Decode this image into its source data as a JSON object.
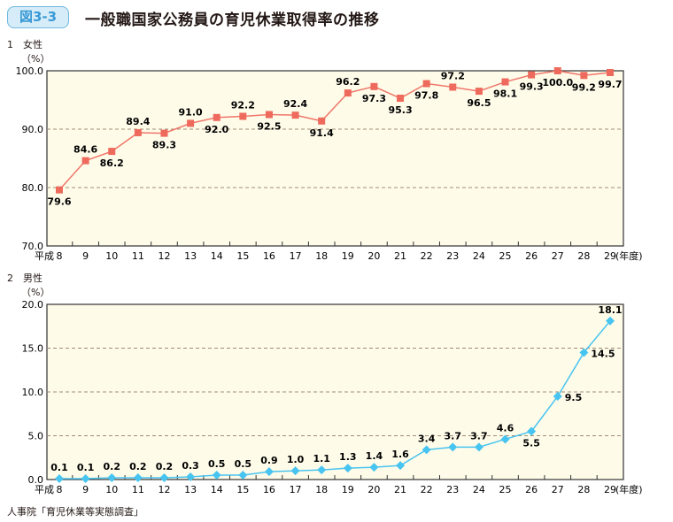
{
  "header": {
    "badge": "図3-3",
    "title": "一般職国家公務員の育児休業取得率の推移"
  },
  "source": "人事院「育児休業等実態調査」",
  "colors": {
    "plot_bg": "#fefbe9",
    "female": "#f0776a",
    "female_marker": "#ee6a5c",
    "male": "#48c4f0",
    "grid": "#a08c74"
  },
  "chart_data": [
    {
      "type": "line",
      "section_label": "1　女性",
      "ylabel": "（%）",
      "xlabel": "(年度)",
      "x_prefix": "平成",
      "categories": [
        "8",
        "9",
        "10",
        "11",
        "12",
        "13",
        "14",
        "15",
        "16",
        "17",
        "18",
        "19",
        "20",
        "21",
        "22",
        "23",
        "24",
        "25",
        "26",
        "27",
        "28",
        "29"
      ],
      "ylim": [
        70,
        100
      ],
      "yticks": [
        "70.0",
        "80.0",
        "90.0",
        "100.0"
      ],
      "grid": true,
      "marker": "square",
      "values": [
        79.6,
        84.6,
        86.2,
        89.4,
        89.3,
        91.0,
        92.0,
        92.2,
        92.5,
        92.4,
        91.4,
        96.2,
        97.3,
        95.3,
        97.8,
        97.2,
        96.5,
        98.1,
        99.3,
        100.0,
        99.2,
        99.7
      ],
      "labels": [
        "79.6",
        "84.6",
        "86.2",
        "89.4",
        "89.3",
        "91.0",
        "92.0",
        "92.2",
        "92.5",
        "92.4",
        "91.4",
        "96.2",
        "97.3",
        "95.3",
        "97.8",
        "97.2",
        "96.5",
        "98.1",
        "99.3",
        "100.0",
        "99.2",
        "99.7"
      ]
    },
    {
      "type": "line",
      "section_label": "2　男性",
      "ylabel": "（%）",
      "xlabel": "(年度)",
      "x_prefix": "平成",
      "categories": [
        "8",
        "9",
        "10",
        "11",
        "12",
        "13",
        "14",
        "15",
        "16",
        "17",
        "18",
        "19",
        "20",
        "21",
        "22",
        "23",
        "24",
        "25",
        "26",
        "27",
        "28",
        "29"
      ],
      "ylim": [
        0,
        20
      ],
      "yticks": [
        "0.0",
        "5.0",
        "10.0",
        "15.0",
        "20.0"
      ],
      "grid": true,
      "marker": "diamond",
      "values": [
        0.1,
        0.1,
        0.2,
        0.2,
        0.2,
        0.3,
        0.5,
        0.5,
        0.9,
        1.0,
        1.1,
        1.3,
        1.4,
        1.6,
        3.4,
        3.7,
        3.7,
        4.6,
        5.5,
        9.5,
        14.5,
        18.1
      ],
      "labels": [
        "0.1",
        "0.1",
        "0.2",
        "0.2",
        "0.2",
        "0.3",
        "0.5",
        "0.5",
        "0.9",
        "1.0",
        "1.1",
        "1.3",
        "1.4",
        "1.6",
        "3.4",
        "3.7",
        "3.7",
        "4.6",
        "5.5",
        "9.5",
        "14.5",
        "18.1"
      ]
    }
  ]
}
